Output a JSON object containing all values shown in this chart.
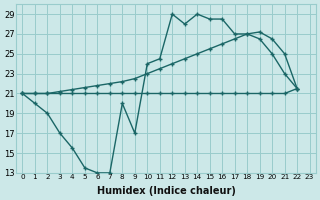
{
  "xlabel": "Humidex (Indice chaleur)",
  "bg_color": "#cce8e8",
  "grid_color": "#99cccc",
  "line_color": "#1a6666",
  "line1_y": [
    21,
    20,
    19,
    17,
    15.5,
    13.5,
    13,
    13,
    20,
    17,
    24,
    24.5,
    29,
    28,
    29,
    28.5,
    28.5,
    27,
    27,
    26.5,
    25,
    23,
    21.5
  ],
  "line2_y": [
    21,
    21,
    21,
    21,
    21,
    21,
    21,
    21,
    21,
    21,
    21,
    21,
    21,
    21,
    21,
    21,
    21,
    21,
    21,
    21,
    21,
    21,
    21.5
  ],
  "line3_y": [
    21,
    21,
    21,
    21.2,
    21.4,
    21.6,
    21.8,
    22,
    22.2,
    22.5,
    23,
    23.5,
    24,
    24.5,
    25,
    25.5,
    26,
    26.5,
    27,
    27.2,
    26.5,
    25,
    21.5
  ],
  "line1_x": [
    0,
    1,
    2,
    3,
    4,
    5,
    6,
    7,
    8,
    9,
    10,
    11,
    12,
    13,
    14,
    15,
    16,
    17,
    18,
    19,
    20,
    21,
    22
  ],
  "line23_x": [
    0,
    1,
    2,
    3,
    4,
    5,
    6,
    7,
    8,
    9,
    10,
    11,
    12,
    13,
    14,
    15,
    16,
    17,
    18,
    19,
    20,
    21,
    22
  ],
  "ylim": [
    13,
    30
  ],
  "xlim_min": -0.5,
  "xlim_max": 23.5,
  "yticks": [
    13,
    15,
    17,
    19,
    21,
    23,
    25,
    27,
    29
  ],
  "xticks": [
    0,
    1,
    2,
    3,
    4,
    5,
    6,
    7,
    8,
    9,
    10,
    11,
    12,
    13,
    14,
    15,
    16,
    17,
    18,
    19,
    20,
    21,
    22,
    23
  ]
}
